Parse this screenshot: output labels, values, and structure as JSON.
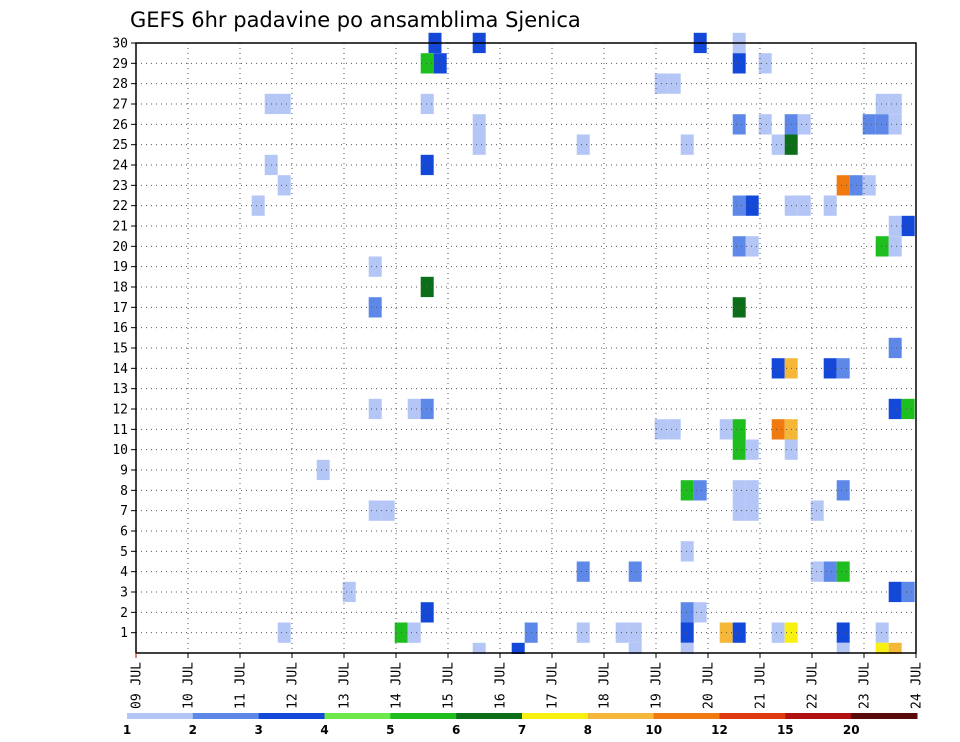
{
  "chart_data": {
    "type": "heatmap",
    "title": "GEFS 6hr padavine po ansamblima Sjenica",
    "x_labels": [
      "09 JUL",
      "10 JUL",
      "11 JUL",
      "12 JUL",
      "13 JUL",
      "14 JUL",
      "15 JUL",
      "16 JUL",
      "17 JUL",
      "18 JUL",
      "19 JUL",
      "20 JUL",
      "21 JUL",
      "22 JUL",
      "23 JUL",
      "24 JUL"
    ],
    "y_labels": [
      "1",
      "2",
      "3",
      "4",
      "5",
      "6",
      "7",
      "8",
      "9",
      "10",
      "11",
      "12",
      "13",
      "14",
      "15",
      "16",
      "17",
      "18",
      "19",
      "20",
      "21",
      "22",
      "23",
      "24",
      "25",
      "26",
      "27",
      "28",
      "29",
      "30"
    ],
    "xlim": [
      0,
      15
    ],
    "ylim": [
      0,
      30
    ],
    "grid": true,
    "colorbar": {
      "labels": [
        "1",
        "2",
        "3",
        "4",
        "5",
        "6",
        "7",
        "8",
        "10",
        "12",
        "15",
        "20"
      ],
      "colors": [
        "#b3c6f5",
        "#5e88e8",
        "#1448d8",
        "#6fe84a",
        "#1fbe1f",
        "#0d6e1a",
        "#f8f010",
        "#f5b738",
        "#f07a10",
        "#e03a10",
        "#b01010",
        "#5a0a0a"
      ]
    },
    "cells": [
      [
        5.75,
        30,
        3
      ],
      [
        6.6,
        30,
        3
      ],
      [
        10.85,
        30,
        3
      ],
      [
        11.6,
        30,
        1
      ],
      [
        5.6,
        29,
        5
      ],
      [
        5.85,
        29,
        3
      ],
      [
        11.6,
        29,
        3
      ],
      [
        12.1,
        29,
        1
      ],
      [
        10.1,
        28,
        1
      ],
      [
        10.35,
        28,
        1
      ],
      [
        2.6,
        27,
        1
      ],
      [
        2.85,
        27,
        1
      ],
      [
        5.6,
        27,
        1
      ],
      [
        14.35,
        27,
        1
      ],
      [
        14.6,
        27,
        1
      ],
      [
        6.6,
        26,
        1
      ],
      [
        11.6,
        26,
        2
      ],
      [
        12.1,
        26,
        1
      ],
      [
        12.6,
        26,
        2
      ],
      [
        12.85,
        26,
        1
      ],
      [
        14.1,
        26,
        2
      ],
      [
        14.35,
        26,
        2
      ],
      [
        14.6,
        26,
        1
      ],
      [
        6.6,
        25,
        1
      ],
      [
        8.6,
        25,
        1
      ],
      [
        10.6,
        25,
        1
      ],
      [
        12.35,
        25,
        1
      ],
      [
        12.6,
        25,
        6
      ],
      [
        2.6,
        24,
        1
      ],
      [
        5.6,
        24,
        3
      ],
      [
        2.85,
        23,
        1
      ],
      [
        13.6,
        23,
        9
      ],
      [
        13.85,
        23,
        2
      ],
      [
        14.1,
        23,
        1
      ],
      [
        2.35,
        22,
        1
      ],
      [
        11.6,
        22,
        2
      ],
      [
        11.85,
        22,
        3
      ],
      [
        12.6,
        22,
        1
      ],
      [
        12.85,
        22,
        1
      ],
      [
        13.35,
        22,
        1
      ],
      [
        14.6,
        21,
        1
      ],
      [
        14.85,
        21,
        3
      ],
      [
        11.6,
        20,
        2
      ],
      [
        11.85,
        20,
        1
      ],
      [
        14.35,
        20,
        5
      ],
      [
        14.6,
        20,
        1
      ],
      [
        4.6,
        19,
        1
      ],
      [
        5.6,
        18,
        6
      ],
      [
        4.6,
        17,
        2
      ],
      [
        11.6,
        17,
        6
      ],
      [
        14.6,
        15,
        2
      ],
      [
        12.35,
        14,
        3
      ],
      [
        12.6,
        14,
        8
      ],
      [
        13.35,
        14,
        3
      ],
      [
        13.6,
        14,
        2
      ],
      [
        4.6,
        12,
        1
      ],
      [
        5.35,
        12,
        1
      ],
      [
        5.6,
        12,
        2
      ],
      [
        14.6,
        12,
        3
      ],
      [
        14.85,
        12,
        5
      ],
      [
        10.1,
        11,
        1
      ],
      [
        10.35,
        11,
        1
      ],
      [
        11.35,
        11,
        1
      ],
      [
        11.6,
        11,
        5
      ],
      [
        12.35,
        11,
        9
      ],
      [
        12.6,
        11,
        8
      ],
      [
        11.6,
        10,
        5
      ],
      [
        11.85,
        10,
        1
      ],
      [
        12.6,
        10,
        1
      ],
      [
        3.6,
        9,
        1
      ],
      [
        10.6,
        8,
        5
      ],
      [
        10.85,
        8,
        2
      ],
      [
        11.6,
        8,
        1
      ],
      [
        11.85,
        8,
        1
      ],
      [
        13.6,
        8,
        2
      ],
      [
        4.6,
        7,
        1
      ],
      [
        4.85,
        7,
        1
      ],
      [
        11.6,
        7,
        1
      ],
      [
        11.85,
        7,
        1
      ],
      [
        13.1,
        7,
        1
      ],
      [
        10.6,
        5,
        1
      ],
      [
        8.6,
        4,
        2
      ],
      [
        9.6,
        4,
        2
      ],
      [
        13.1,
        4,
        1
      ],
      [
        13.35,
        4,
        2
      ],
      [
        13.6,
        4,
        5
      ],
      [
        4.1,
        3,
        1
      ],
      [
        14.6,
        3,
        3
      ],
      [
        14.85,
        3,
        2
      ],
      [
        5.6,
        2,
        3
      ],
      [
        10.6,
        2,
        2
      ],
      [
        10.85,
        2,
        1
      ],
      [
        2.85,
        1,
        1
      ],
      [
        5.1,
        1,
        5
      ],
      [
        5.35,
        1,
        1
      ],
      [
        7.6,
        1,
        2
      ],
      [
        8.6,
        1,
        1
      ],
      [
        9.35,
        1,
        1
      ],
      [
        9.6,
        1,
        1
      ],
      [
        10.6,
        1,
        3
      ],
      [
        11.35,
        1,
        8
      ],
      [
        11.6,
        1,
        3
      ],
      [
        12.35,
        1,
        1
      ],
      [
        12.6,
        1,
        7
      ],
      [
        13.6,
        1,
        3
      ],
      [
        14.35,
        1,
        1
      ],
      [
        6.6,
        0,
        1
      ],
      [
        7.35,
        0,
        3
      ],
      [
        9.6,
        0,
        1
      ],
      [
        10.6,
        0,
        1
      ],
      [
        13.6,
        0,
        1
      ],
      [
        14.35,
        0,
        7
      ],
      [
        14.6,
        0,
        8
      ]
    ]
  }
}
